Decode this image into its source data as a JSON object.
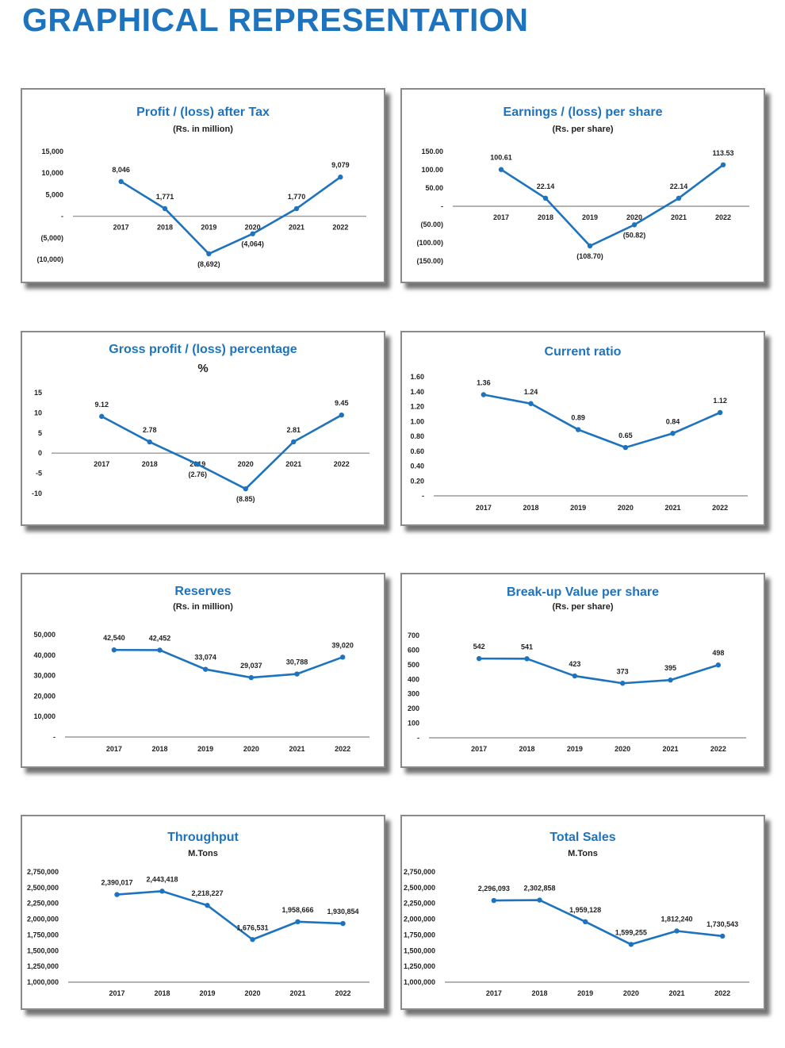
{
  "page_title": "GRAPHICAL REPRESENTATION",
  "colors": {
    "series": "#1e73be",
    "axis": "#9a9a9a",
    "title": "#1e73be"
  },
  "chart_data": [
    {
      "type": "line",
      "title": "Profit / (loss) after Tax",
      "subtitle": "(Rs. in million)",
      "categories": [
        "2017",
        "2018",
        "2019",
        "2020",
        "2021",
        "2022"
      ],
      "values": [
        8046,
        1771,
        -8692,
        -4064,
        1770,
        9079
      ],
      "data_labels": [
        "8,046",
        "1,771",
        "(8,692)",
        "(4,064)",
        "1,770",
        "9,079"
      ],
      "ylim": [
        -10000,
        15000
      ],
      "y_ticks": [
        15000,
        10000,
        5000,
        0,
        -5000,
        -10000
      ],
      "y_tick_labels": [
        "15,000",
        "10,000",
        "5,000",
        "-",
        "(5,000)",
        "(10,000)"
      ],
      "grid": false
    },
    {
      "type": "line",
      "title": "Earnings / (loss) per share",
      "subtitle": "(Rs. per share)",
      "categories": [
        "2017",
        "2018",
        "2019",
        "2020",
        "2021",
        "2022"
      ],
      "values": [
        100.61,
        22.14,
        -108.7,
        -50.82,
        22.14,
        113.53
      ],
      "data_labels": [
        "100.61",
        "22.14",
        "(108.70)",
        "(50.82)",
        "22.14",
        "113.53"
      ],
      "ylim": [
        -150,
        150
      ],
      "y_ticks": [
        150,
        100,
        50,
        0,
        -50,
        -100,
        -150
      ],
      "y_tick_labels": [
        "150.00",
        "100.00",
        "50.00",
        "-",
        "(50.00)",
        "(100.00)",
        "(150.00)"
      ],
      "grid": false
    },
    {
      "type": "line",
      "title": "Gross profit / (loss) percentage",
      "subtitle": "%",
      "categories": [
        "2017",
        "2018",
        "2019",
        "2020",
        "2021",
        "2022"
      ],
      "values": [
        9.12,
        2.78,
        -2.76,
        -8.85,
        2.81,
        9.45
      ],
      "data_labels": [
        "9.12",
        "2.78",
        "(2.76)",
        "(8.85)",
        "2.81",
        "9.45"
      ],
      "ylim": [
        -10,
        15
      ],
      "y_ticks": [
        15,
        10,
        5,
        0,
        -5,
        -10
      ],
      "y_tick_labels": [
        "15",
        "10",
        "5",
        "0",
        "-5",
        "-10"
      ],
      "grid": false
    },
    {
      "type": "line",
      "title": "Current ratio",
      "subtitle": "",
      "categories": [
        "2017",
        "2018",
        "2019",
        "2020",
        "2021",
        "2022"
      ],
      "values": [
        1.36,
        1.24,
        0.89,
        0.65,
        0.84,
        1.12
      ],
      "data_labels": [
        "1.36",
        "1.24",
        "0.89",
        "0.65",
        "0.84",
        "1.12"
      ],
      "ylim": [
        0,
        1.6
      ],
      "y_ticks": [
        1.6,
        1.4,
        1.2,
        1.0,
        0.8,
        0.6,
        0.4,
        0.2,
        0
      ],
      "y_tick_labels": [
        "1.60",
        "1.40",
        "1.20",
        "1.00",
        "0.80",
        "0.60",
        "0.40",
        "0.20",
        "-"
      ],
      "grid": false
    },
    {
      "type": "line",
      "title": "Reserves",
      "subtitle": "(Rs. in million)",
      "categories": [
        "2017",
        "2018",
        "2019",
        "2020",
        "2021",
        "2022"
      ],
      "values": [
        42540,
        42452,
        33074,
        29037,
        30788,
        39020
      ],
      "data_labels": [
        "42,540",
        "42,452",
        "33,074",
        "29,037",
        "30,788",
        "39,020"
      ],
      "ylim": [
        0,
        50000
      ],
      "y_ticks": [
        50000,
        40000,
        30000,
        20000,
        10000,
        0
      ],
      "y_tick_labels": [
        "50,000",
        "40,000",
        "30,000",
        "20,000",
        "10,000",
        "-"
      ],
      "grid": false
    },
    {
      "type": "line",
      "title": "Break-up Value per share",
      "subtitle": "(Rs. per share)",
      "categories": [
        "2017",
        "2018",
        "2019",
        "2020",
        "2021",
        "2022"
      ],
      "values": [
        542,
        541,
        423,
        373,
        395,
        498
      ],
      "data_labels": [
        "542",
        "541",
        "423",
        "373",
        "395",
        "498"
      ],
      "ylim": [
        0,
        700
      ],
      "y_ticks": [
        700,
        600,
        500,
        400,
        300,
        200,
        100,
        0
      ],
      "y_tick_labels": [
        "700",
        "600",
        "500",
        "400",
        "300",
        "200",
        "100",
        "-"
      ],
      "grid": false
    },
    {
      "type": "line",
      "title": "Throughput",
      "subtitle": "M.Tons",
      "categories": [
        "2017",
        "2018",
        "2019",
        "2020",
        "2021",
        "2022"
      ],
      "values": [
        2390017,
        2443418,
        2218227,
        1676531,
        1958666,
        1930854
      ],
      "data_labels": [
        "2,390,017",
        "2,443,418",
        "2,218,227",
        "1,676,531",
        "1,958,666",
        "1,930,854"
      ],
      "ylim": [
        1000000,
        2750000
      ],
      "y_ticks": [
        2750000,
        2500000,
        2250000,
        2000000,
        1750000,
        1500000,
        1250000,
        1000000
      ],
      "y_tick_labels": [
        "2,750,000",
        "2,500,000",
        "2,250,000",
        "2,000,000",
        "1,750,000",
        "1,500,000",
        "1,250,000",
        "1,000,000"
      ],
      "grid": false
    },
    {
      "type": "line",
      "title": "Total Sales",
      "subtitle": "M.Tons",
      "categories": [
        "2017",
        "2018",
        "2019",
        "2020",
        "2021",
        "2022"
      ],
      "values": [
        2296093,
        2302858,
        1959128,
        1599255,
        1812240,
        1730543
      ],
      "data_labels": [
        "2,296,093",
        "2,302,858",
        "1,959,128",
        "1,599,255",
        "1,812,240",
        "1,730,543"
      ],
      "ylim": [
        1000000,
        2750000
      ],
      "y_ticks": [
        2750000,
        2500000,
        2250000,
        2000000,
        1750000,
        1500000,
        1250000,
        1000000
      ],
      "y_tick_labels": [
        "2,750,000",
        "2,500,000",
        "2,250,000",
        "2,000,000",
        "1,750,000",
        "1,500,000",
        "1,250,000",
        "1,000,000"
      ],
      "grid": false
    }
  ]
}
